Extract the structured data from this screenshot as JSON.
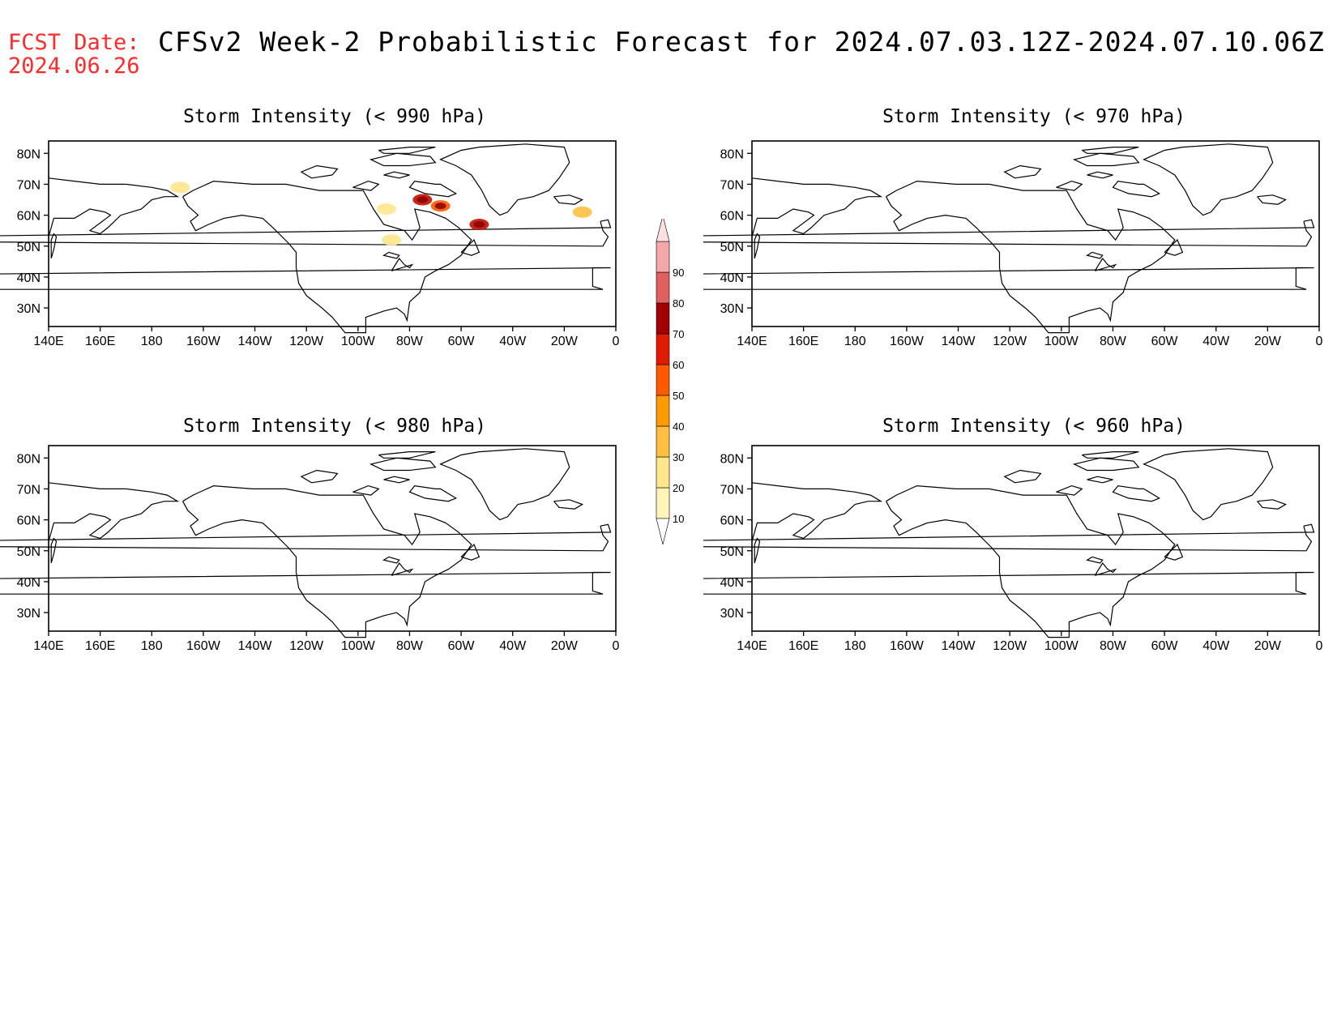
{
  "header": {
    "fcst_label": "FCST Date:",
    "fcst_date": "2024.06.26",
    "title": "CFSv2 Week-2 Probabilistic Forecast for 2024.07.03.12Z-2024.07.10.06Z"
  },
  "axes": {
    "lat_labels": [
      "80N",
      "70N",
      "60N",
      "50N",
      "40N",
      "30N"
    ],
    "lon_labels": [
      "140E",
      "160E",
      "180",
      "160W",
      "140W",
      "120W",
      "100W",
      "80W",
      "60W",
      "40W",
      "20W",
      "0"
    ]
  },
  "panels": [
    {
      "title": "Storm Intensity (< 990 hPa)"
    },
    {
      "title": "Storm Intensity (< 970 hPa)"
    },
    {
      "title": "Storm Intensity (< 980 hPa)"
    },
    {
      "title": "Storm Intensity (< 960 hPa)"
    }
  ],
  "colorbar": {
    "labels": [
      "10",
      "20",
      "30",
      "40",
      "50",
      "60",
      "70",
      "80",
      "90"
    ],
    "colors": [
      "#fff5b8",
      "#ffe58c",
      "#ffc040",
      "#ff9a00",
      "#ff5a00",
      "#e01a00",
      "#a00000",
      "#e06060",
      "#f4a7a7",
      "#ffe0e0"
    ]
  },
  "chart_data": {
    "type": "map",
    "variable": "probability of storm intensity below threshold (%)",
    "panels": [
      {
        "threshold": "< 990 hPa",
        "probability_areas": [
          {
            "lon": -169,
            "lat": 69,
            "prob_class": "10-20"
          },
          {
            "lon": -89,
            "lat": 62,
            "prob_class": "10-20"
          },
          {
            "lon": -87,
            "lat": 52,
            "prob_class": "10-20"
          },
          {
            "lon": -75,
            "lat": 65,
            "prob_class": "50-70"
          },
          {
            "lon": -68,
            "lat": 63,
            "prob_class": "40-60"
          },
          {
            "lon": -53,
            "lat": 57,
            "prob_class": "50-70"
          },
          {
            "lon": -13,
            "lat": 61,
            "prob_class": "20-30"
          }
        ]
      },
      {
        "threshold": "< 970 hPa",
        "probability_areas": []
      },
      {
        "threshold": "< 980 hPa",
        "probability_areas": []
      },
      {
        "threshold": "< 960 hPa",
        "probability_areas": []
      }
    ]
  }
}
